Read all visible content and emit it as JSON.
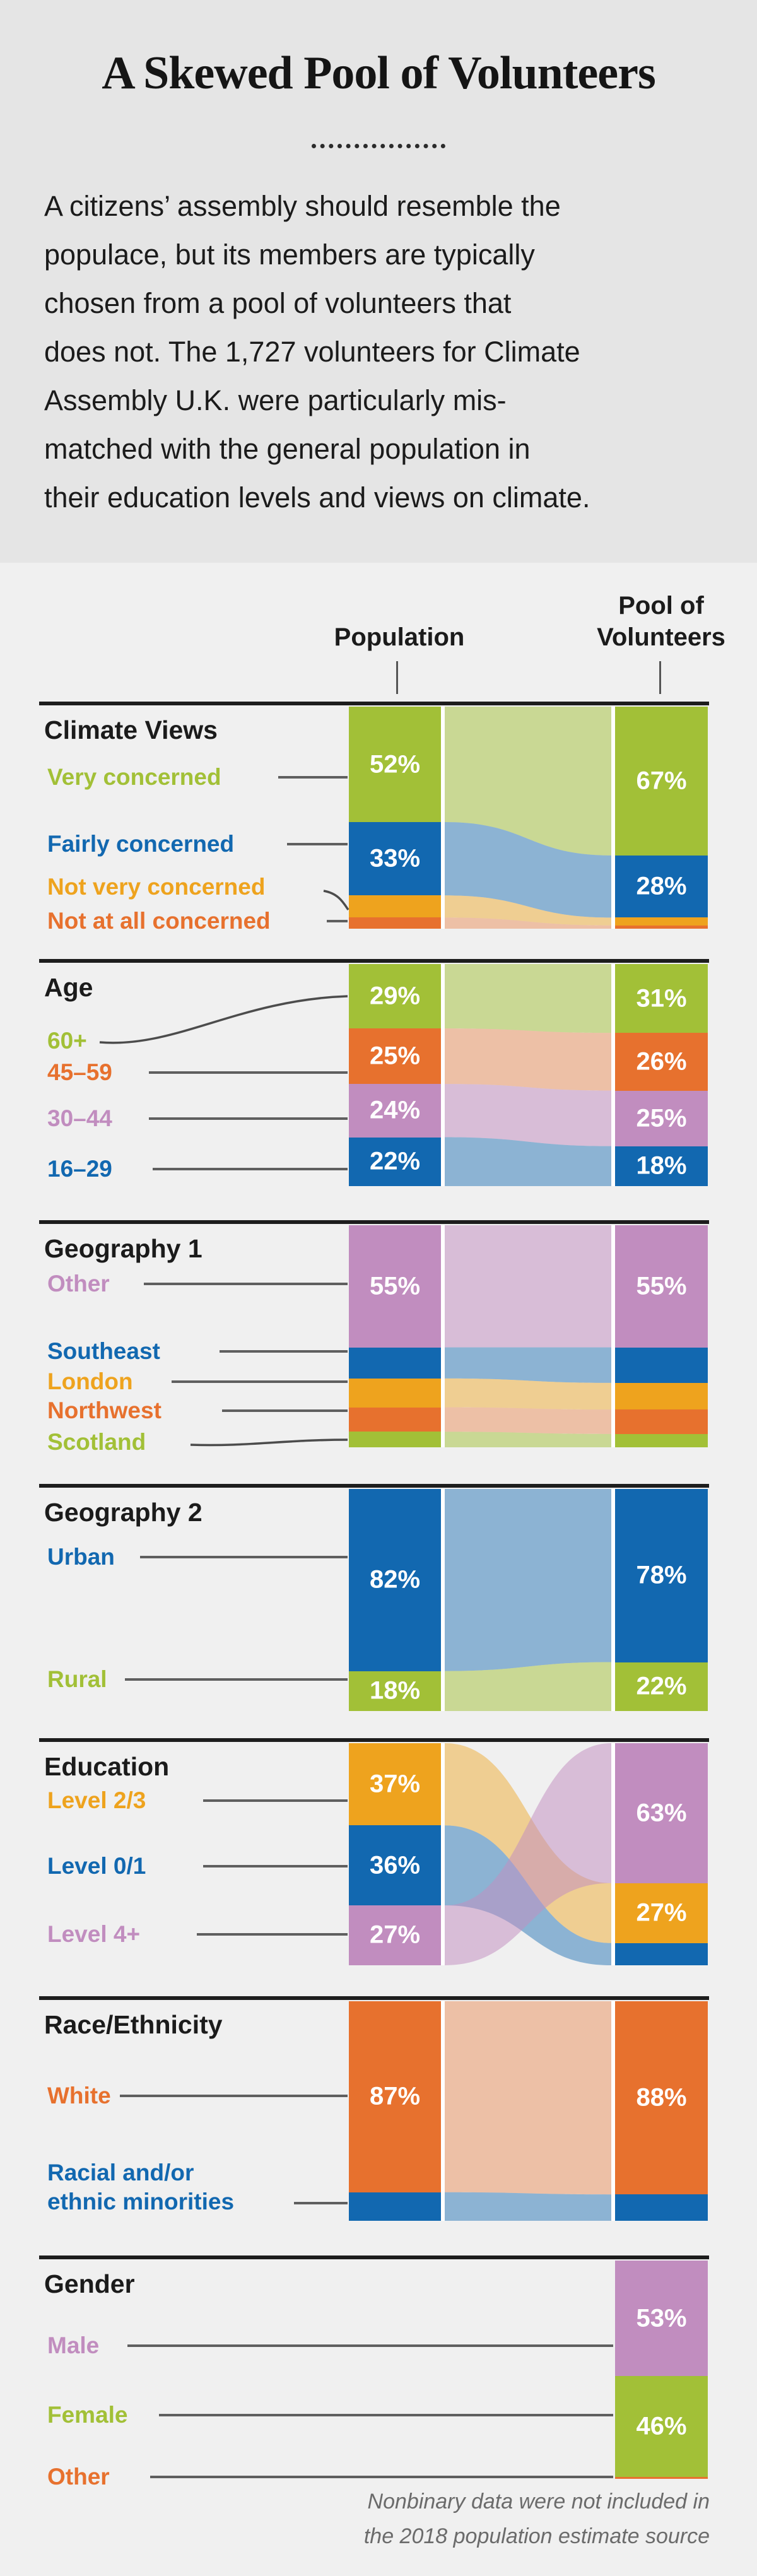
{
  "header": {
    "title": "A Skewed Pool of Volunteers",
    "intro_lines": [
      "A citizens’ assembly should resemble the",
      "populace, but its members are typically",
      "chosen from a pool of volunteers that",
      "does not. The 1,727 volunteers for Climate",
      "Assembly U.K. were particularly mis-",
      "matched with the general population in",
      "their education levels and views on climate."
    ]
  },
  "columns": {
    "population": "Population",
    "pool_line1": "Pool of",
    "pool_line2": "Volunteers"
  },
  "footnote": {
    "lines": [
      "Nonbinary data were not included in",
      "the 2018 population estimate source"
    ]
  },
  "colors": {
    "green": "#a2c037",
    "blue": "#1268b0",
    "amber": "#eea31e",
    "orange": "#e7712e",
    "purple": "#c18dbf",
    "header_bg": "#e5e5e5",
    "chart_bg": "#f0f0f0",
    "rule": "#1d1d1d",
    "connector": "#5f5f5f"
  },
  "chart_data": {
    "type": "area",
    "subtype": "sankey-alluvial-comparison",
    "left_column": "Population",
    "right_column": "Pool of Volunteers",
    "note": "values are percentages; unlabeled segment values estimated from pixels",
    "sections": [
      {
        "id": "climate-views",
        "title": "Climate Views",
        "categories": [
          {
            "label": "Very concerned",
            "color": "#a2c037",
            "population": 52,
            "volunteers": 67,
            "pop_label": "52%",
            "vol_label": "67%"
          },
          {
            "label": "Fairly concerned",
            "color": "#1268b0",
            "population": 33,
            "volunteers": 28,
            "pop_label": "33%",
            "vol_label": "28%"
          },
          {
            "label": "Not very concerned",
            "color": "#eea31e",
            "population": 10,
            "volunteers": 3.5,
            "pop_label": null,
            "vol_label": null
          },
          {
            "label": "Not at all concerned",
            "color": "#e7712e",
            "population": 5,
            "volunteers": 1.5,
            "pop_label": null,
            "vol_label": null
          }
        ]
      },
      {
        "id": "age",
        "title": "Age",
        "categories": [
          {
            "label": "60+",
            "color": "#a2c037",
            "population": 29,
            "volunteers": 31,
            "pop_label": "29%",
            "vol_label": "31%"
          },
          {
            "label": "45–59",
            "color": "#e7712e",
            "population": 25,
            "volunteers": 26,
            "pop_label": "25%",
            "vol_label": "26%"
          },
          {
            "label": "30–44",
            "color": "#c18dbf",
            "population": 24,
            "volunteers": 25,
            "pop_label": "24%",
            "vol_label": "25%"
          },
          {
            "label": "16–29",
            "color": "#1268b0",
            "population": 22,
            "volunteers": 18,
            "pop_label": "22%",
            "vol_label": "18%"
          }
        ]
      },
      {
        "id": "geography-1",
        "title": "Geography 1",
        "categories": [
          {
            "label": "Other",
            "color": "#c18dbf",
            "population": 55,
            "volunteers": 55,
            "pop_label": "55%",
            "vol_label": "55%"
          },
          {
            "label": "Southeast",
            "color": "#1268b0",
            "population": 14,
            "volunteers": 16,
            "pop_label": null,
            "vol_label": null
          },
          {
            "label": "London",
            "color": "#eea31e",
            "population": 13,
            "volunteers": 12,
            "pop_label": null,
            "vol_label": null
          },
          {
            "label": "Northwest",
            "color": "#e7712e",
            "population": 11,
            "volunteers": 11,
            "pop_label": null,
            "vol_label": null
          },
          {
            "label": "Scotland",
            "color": "#a2c037",
            "population": 7,
            "volunteers": 6,
            "pop_label": null,
            "vol_label": null
          }
        ]
      },
      {
        "id": "geography-2",
        "title": "Geography 2",
        "categories": [
          {
            "label": "Urban",
            "color": "#1268b0",
            "population": 82,
            "volunteers": 78,
            "pop_label": "82%",
            "vol_label": "78%"
          },
          {
            "label": "Rural",
            "color": "#a2c037",
            "population": 18,
            "volunteers": 22,
            "pop_label": "18%",
            "vol_label": "22%"
          }
        ]
      },
      {
        "id": "education",
        "title": "Education",
        "vol_order": [
          2,
          0,
          1
        ],
        "categories": [
          {
            "label": "Level 2/3",
            "color": "#eea31e",
            "population": 37,
            "volunteers": 27,
            "pop_label": "37%",
            "vol_label": "27%"
          },
          {
            "label": "Level 0/1",
            "color": "#1268b0",
            "population": 36,
            "volunteers": 10,
            "pop_label": "36%",
            "vol_label": null
          },
          {
            "label": "Level 4+",
            "color": "#c18dbf",
            "population": 27,
            "volunteers": 63,
            "pop_label": "27%",
            "vol_label": "63%"
          }
        ]
      },
      {
        "id": "race-ethnicity",
        "title": "Race/Ethnicity",
        "categories": [
          {
            "label": "White",
            "color": "#e7712e",
            "population": 87,
            "volunteers": 88,
            "pop_label": "87%",
            "vol_label": "88%"
          },
          {
            "label": "Racial and/or\nethnic minorities",
            "color": "#1268b0",
            "population": 13,
            "volunteers": 12,
            "pop_label": null,
            "vol_label": null
          }
        ]
      },
      {
        "id": "gender",
        "title": "Gender",
        "volunteers_only": true,
        "categories": [
          {
            "label": "Male",
            "color": "#c18dbf",
            "population": null,
            "volunteers": 53,
            "pop_label": null,
            "vol_label": "53%"
          },
          {
            "label": "Female",
            "color": "#a2c037",
            "population": null,
            "volunteers": 46,
            "pop_label": null,
            "vol_label": "46%"
          },
          {
            "label": "Other",
            "color": "#e7712e",
            "population": null,
            "volunteers": 1,
            "pop_label": null,
            "vol_label": null
          }
        ]
      }
    ]
  }
}
